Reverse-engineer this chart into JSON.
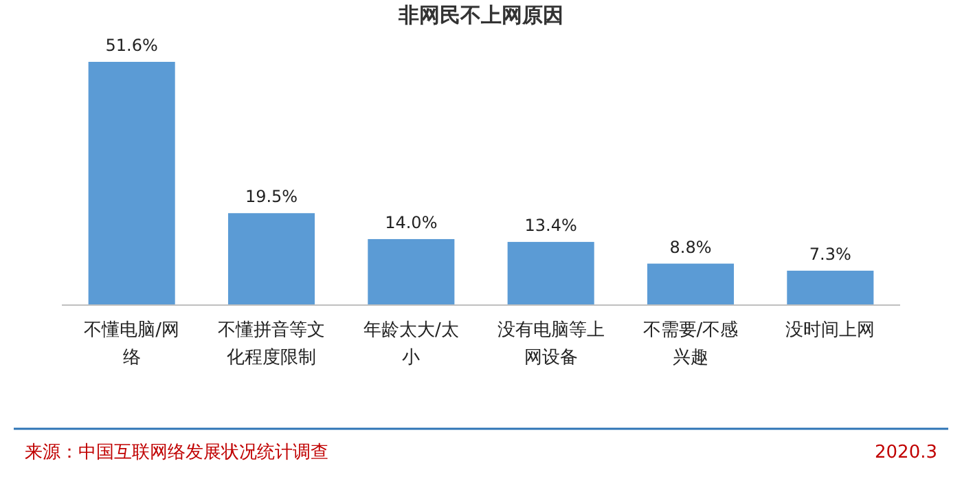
{
  "chart_data": {
    "type": "bar",
    "title": "非网民不上网原因",
    "categories": [
      "不懂电脑/网络",
      "不懂拼音等文化程度限制",
      "年龄太大/太小",
      "没有电脑等上网设备",
      "不需要/不感兴趣",
      "没时间上网"
    ],
    "values": [
      51.6,
      19.5,
      14.0,
      13.4,
      8.8,
      7.3
    ],
    "value_labels": [
      "51.6%",
      "19.5%",
      "14.0%",
      "13.4%",
      "8.8%",
      "7.3%"
    ],
    "color": "#5b9bd5",
    "annotations": [
      "来源：中国互联网络发展状况统计调查",
      "2020.3"
    ]
  }
}
